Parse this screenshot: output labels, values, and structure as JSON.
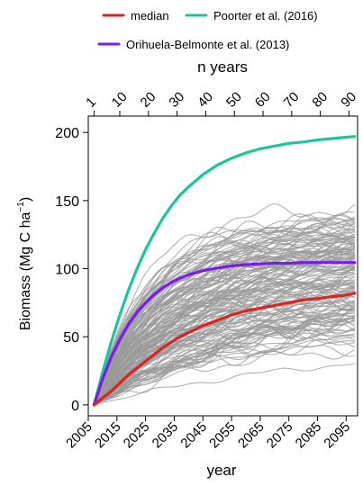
{
  "chart_data": {
    "type": "line",
    "title": "",
    "xlabel": "year",
    "ylabel_main": "Biomass (Mg C ha",
    "ylabel_sup": "−1",
    "ylabel_close": ")",
    "x_range": [
      2005,
      2099
    ],
    "y_range": [
      -8,
      212
    ],
    "x_ticks": [
      2005,
      2015,
      2025,
      2035,
      2045,
      2055,
      2065,
      2075,
      2085,
      2095
    ],
    "x_tick_labels": [
      "2005",
      "2015",
      "2025",
      "2035",
      "2045",
      "2055",
      "2065",
      "2075",
      "2085",
      "2095"
    ],
    "y_ticks": [
      0,
      50,
      100,
      150,
      200
    ],
    "y_tick_labels": [
      "0",
      "50",
      "100",
      "150",
      "200"
    ],
    "top_axis": {
      "label": "n years",
      "ticks": [
        1,
        10,
        20,
        30,
        40,
        50,
        60,
        70,
        80,
        90
      ],
      "tick_labels": [
        "1",
        "10",
        "20",
        "30",
        "40",
        "50",
        "60",
        "70",
        "80",
        "90"
      ],
      "year_offset": 2006
    },
    "start_year": 2007,
    "end_year": 2098,
    "legend": {
      "position": "top",
      "entries": [
        {
          "name": "median",
          "color": "#dd2222"
        },
        {
          "name": "Poorter et al. (2016)",
          "color": "#1ec49a"
        },
        {
          "name": "Orihuela-Belmonte et al. (2013)",
          "color": "#7a1ce8"
        }
      ]
    },
    "colors": {
      "ensemble": "#9a9a9a",
      "axis": "#000000"
    },
    "grid": false,
    "series": [
      {
        "id": "poorter",
        "x": [
          2007,
          2010,
          2013,
          2016,
          2019,
          2022,
          2025,
          2028,
          2031,
          2034,
          2037,
          2040,
          2045,
          2050,
          2055,
          2060,
          2065,
          2070,
          2075,
          2080,
          2085,
          2090,
          2095,
          2098
        ],
        "values": [
          0,
          24,
          46,
          66,
          84,
          100,
          114,
          126,
          137,
          146,
          154,
          160,
          169,
          176,
          181,
          185,
          188,
          190,
          192,
          193,
          194.5,
          195.5,
          196.5,
          197
        ]
      },
      {
        "id": "orihuela",
        "x": [
          2007,
          2010,
          2013,
          2016,
          2019,
          2022,
          2025,
          2028,
          2031,
          2034,
          2037,
          2040,
          2045,
          2050,
          2055,
          2060,
          2065,
          2070,
          2075,
          2080,
          2085,
          2090,
          2095,
          2098
        ],
        "values": [
          0,
          19,
          35,
          48,
          59,
          68,
          75,
          81,
          86,
          90,
          93,
          95.5,
          98.5,
          100.5,
          102,
          103,
          103.5,
          104,
          104,
          104.5,
          104.5,
          104.5,
          104.5,
          104.5
        ]
      },
      {
        "id": "median",
        "x": [
          2007,
          2010,
          2013,
          2016,
          2019,
          2022,
          2025,
          2028,
          2031,
          2034,
          2037,
          2040,
          2045,
          2050,
          2055,
          2060,
          2065,
          2070,
          2075,
          2080,
          2085,
          2090,
          2095,
          2098
        ],
        "values": [
          0,
          5,
          10,
          16,
          22,
          27,
          32,
          37,
          42,
          46,
          50,
          53,
          58,
          62,
          66,
          69,
          71,
          73,
          75,
          77,
          78,
          79.5,
          80.5,
          82
        ]
      }
    ],
    "ensemble": {
      "count": 160,
      "asymptote_range": [
        40,
        146
      ],
      "approximate": true
    }
  }
}
